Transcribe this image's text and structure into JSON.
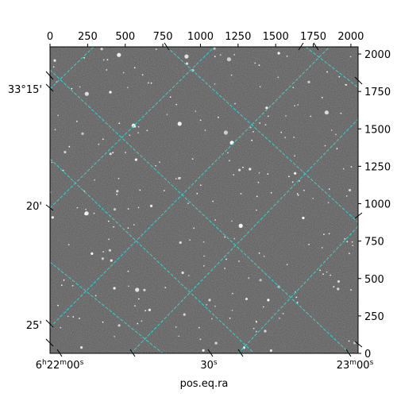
{
  "chart_data": {
    "type": "image",
    "description_axes": "astronomical sky image with WCS overlay",
    "xlabel": "pos.eq.ra",
    "ylabel": "",
    "pixel_axes": {
      "x_ticks": [
        0,
        250,
        500,
        750,
        1000,
        1250,
        1500,
        1750,
        2000
      ],
      "y_ticks": [
        0,
        250,
        500,
        750,
        1000,
        1250,
        1500,
        1750,
        2000
      ],
      "x_range": [
        0,
        2048
      ],
      "y_range": [
        0,
        2048
      ]
    },
    "ra_ticks": [
      {
        "label": "6h22m00s",
        "h": "6",
        "m": "22",
        "s": "00"
      },
      {
        "label": "30s",
        "s": "30"
      },
      {
        "label": "23m00s",
        "m": "23",
        "s": "00"
      }
    ],
    "dec_ticks": [
      {
        "label": "33°15'",
        "value": "33:15"
      },
      {
        "label": "20'",
        "value": "33:20"
      },
      {
        "label": "25'",
        "value": "33:25"
      }
    ],
    "grid": true,
    "colors": {
      "grid": "#2fd6cf",
      "frame": "#000000",
      "sky_background": "#5a5a5a"
    }
  }
}
